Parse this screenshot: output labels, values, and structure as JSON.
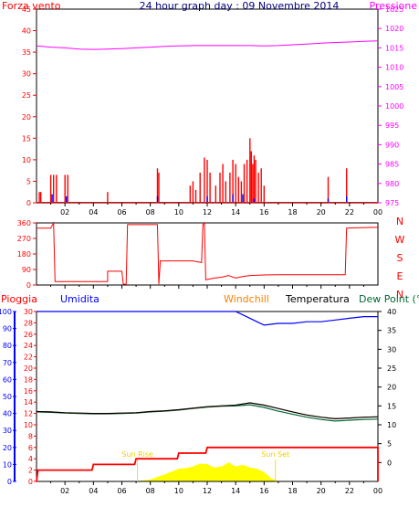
{
  "colors": {
    "background": "#ffffff",
    "frame": "#000000",
    "wind_speed": "#ff0000",
    "wind_gust": "#0000ff",
    "pressure": "#ff00ff",
    "wind_direction": "#ff0000",
    "rain": "#ff0000",
    "humidity": "#0000ff",
    "windchill": "#ff8000",
    "temperature": "#000000",
    "dew_point": "#006633",
    "solar": "#ffff00",
    "sun_label": "#f0d000",
    "title": "#000080"
  },
  "chart_data": [
    {
      "id": "wind-pressure",
      "type": "line",
      "title": "24 hour graph day : 09 Novembre 2014",
      "left_axis_label": "Forza vento",
      "right_axis_label": "Pressione",
      "left_ticks": [
        0,
        5,
        10,
        15,
        20,
        25,
        30,
        35,
        40,
        45
      ],
      "right_ticks": [
        975,
        980,
        985,
        990,
        995,
        1000,
        1005,
        1010,
        1015,
        1020,
        1025
      ],
      "ylim_left": [
        0,
        45
      ],
      "ylim_right": [
        975,
        1025
      ],
      "x_tick_labels": [
        "02",
        "04",
        "06",
        "08",
        "10",
        "12",
        "14",
        "16",
        "18",
        "20",
        "22",
        "00"
      ],
      "x_range_hours": [
        0,
        24
      ],
      "series": [
        {
          "key": "pressure",
          "axis": "right",
          "x": [
            0,
            1,
            2,
            3,
            4,
            5,
            6,
            7,
            8,
            9,
            10,
            11,
            12,
            13,
            14,
            15,
            16,
            17,
            18,
            19,
            20,
            21,
            22,
            23,
            24
          ],
          "values": [
            1015.5,
            1015.2,
            1015,
            1014.7,
            1014.6,
            1014.7,
            1014.8,
            1015,
            1015.2,
            1015.4,
            1015.5,
            1015.6,
            1015.6,
            1015.6,
            1015.6,
            1015.6,
            1015.5,
            1015.6,
            1015.8,
            1016,
            1016.2,
            1016.4,
            1016.5,
            1016.7,
            1016.8
          ]
        },
        {
          "key": "wind_speed",
          "axis": "left",
          "spikes": [
            [
              0.2,
              2.5
            ],
            [
              0.3,
              2.5
            ],
            [
              1,
              6.5
            ],
            [
              1.2,
              6.5
            ],
            [
              1.4,
              6.5
            ],
            [
              2,
              6.5
            ],
            [
              2.2,
              6.5
            ],
            [
              5,
              2.5
            ],
            [
              8.5,
              8
            ],
            [
              8.6,
              7
            ],
            [
              10.8,
              4
            ],
            [
              11,
              5
            ],
            [
              11.2,
              3
            ],
            [
              11.5,
              7
            ],
            [
              11.8,
              10.5
            ],
            [
              12,
              10
            ],
            [
              12.2,
              7
            ],
            [
              12.6,
              4
            ],
            [
              12.9,
              7
            ],
            [
              13.1,
              9
            ],
            [
              13.3,
              5
            ],
            [
              13.6,
              7
            ],
            [
              13.8,
              10
            ],
            [
              14,
              9
            ],
            [
              14.2,
              6
            ],
            [
              14.4,
              5
            ],
            [
              14.6,
              9
            ],
            [
              14.8,
              10
            ],
            [
              15,
              15
            ],
            [
              15.1,
              12
            ],
            [
              15.2,
              9
            ],
            [
              15.3,
              11
            ],
            [
              15.4,
              10
            ],
            [
              15.6,
              7
            ],
            [
              15.8,
              8
            ],
            [
              16,
              4
            ],
            [
              20.5,
              6
            ],
            [
              21.8,
              8
            ]
          ]
        },
        {
          "key": "wind_gust",
          "axis": "left",
          "spikes": [
            [
              1.1,
              2
            ],
            [
              2.1,
              1.5
            ],
            [
              8.5,
              1.5
            ],
            [
              12,
              1.5
            ],
            [
              13.8,
              2
            ],
            [
              14.5,
              2
            ],
            [
              15.3,
              1
            ],
            [
              20.5,
              1
            ],
            [
              21.8,
              1.5
            ]
          ]
        }
      ]
    },
    {
      "id": "wind-direction",
      "type": "line",
      "left_ticks": [
        0,
        90,
        180,
        270,
        360
      ],
      "ylim": [
        0,
        360
      ],
      "right_labels": [
        "N",
        "W",
        "S",
        "E",
        "N"
      ],
      "x_range_hours": [
        0,
        24
      ],
      "series": [
        {
          "key": "wind_direction",
          "points": [
            [
              0,
              330
            ],
            [
              1,
              330
            ],
            [
              1.2,
              360
            ],
            [
              1.3,
              20
            ],
            [
              5,
              20
            ],
            [
              5,
              80
            ],
            [
              6,
              80
            ],
            [
              6.1,
              5
            ],
            [
              6.3,
              5
            ],
            [
              6.4,
              350
            ],
            [
              8.5,
              350
            ],
            [
              8.6,
              5
            ],
            [
              8.7,
              140
            ],
            [
              11,
              140
            ],
            [
              11.6,
              130
            ],
            [
              11.7,
              350
            ],
            [
              11.8,
              370
            ],
            [
              11.9,
              30
            ],
            [
              12.5,
              40
            ],
            [
              13,
              45
            ],
            [
              13.5,
              55
            ],
            [
              14,
              40
            ],
            [
              14.5,
              50
            ],
            [
              15,
              55
            ],
            [
              16,
              58
            ],
            [
              17,
              60
            ],
            [
              20,
              60
            ],
            [
              21.7,
              60
            ],
            [
              21.8,
              330
            ],
            [
              24,
              335
            ]
          ]
        }
      ]
    },
    {
      "id": "rain-humidity-temperature",
      "type": "line",
      "legend": [
        "Pioggia",
        "Umidita",
        "Windchill",
        "Temperatura",
        "Dew Point (°C"
      ],
      "left_ticks_rain": [
        0,
        2,
        4,
        6,
        8,
        10,
        12,
        14,
        16,
        18,
        20,
        22,
        24,
        26,
        28,
        30
      ],
      "ylim_rain": [
        0,
        30
      ],
      "left_ticks_humidity": [
        0,
        10,
        20,
        30,
        40,
        50,
        60,
        70,
        80,
        90,
        100
      ],
      "ylim_humidity": [
        0,
        100
      ],
      "right_ticks_temp": [
        0,
        5,
        10,
        15,
        20,
        25,
        30,
        35,
        40
      ],
      "ylim_temp": [
        -5,
        40
      ],
      "x_tick_labels": [
        "02",
        "04",
        "06",
        "08",
        "10",
        "12",
        "14",
        "16",
        "18",
        "20",
        "22",
        "00"
      ],
      "x_range_hours": [
        0,
        24
      ],
      "annotations": [
        {
          "text": "Sun Rise",
          "hour": 7.1
        },
        {
          "text": "Sun Set",
          "hour": 16.8
        }
      ],
      "series": [
        {
          "key": "humidity",
          "x": [
            0,
            14,
            14.5,
            15,
            15.5,
            16,
            17,
            18,
            19,
            20,
            21,
            22,
            23,
            24
          ],
          "values": [
            100,
            100,
            98,
            96,
            94,
            92,
            93,
            93,
            94,
            94,
            95,
            96,
            97,
            97
          ]
        },
        {
          "key": "temperature",
          "x": [
            0,
            1,
            2,
            3,
            4,
            5,
            6,
            7,
            8,
            9,
            10,
            11,
            12,
            13,
            14,
            15,
            16,
            17,
            18,
            19,
            20,
            21,
            22,
            23,
            24
          ],
          "values": [
            13.5,
            13.4,
            13.2,
            13.1,
            13,
            13,
            13.1,
            13.2,
            13.5,
            13.7,
            14,
            14.4,
            14.8,
            15,
            15.2,
            15.8,
            15.2,
            14.3,
            13.4,
            12.6,
            12,
            11.6,
            11.8,
            12,
            12.1
          ]
        },
        {
          "key": "dew_point",
          "x": [
            0,
            1,
            2,
            3,
            4,
            5,
            6,
            7,
            8,
            9,
            10,
            11,
            12,
            13,
            14,
            15,
            16,
            17,
            18,
            19,
            20,
            21,
            22,
            23,
            24
          ],
          "values": [
            13.4,
            13.3,
            13.1,
            13,
            12.9,
            12.9,
            13,
            13.1,
            13.4,
            13.6,
            13.9,
            14.3,
            14.7,
            14.9,
            15,
            15.3,
            14.6,
            13.6,
            12.8,
            12,
            11.4,
            11,
            11.2,
            11.4,
            11.5
          ]
        },
        {
          "key": "windchill",
          "x": [
            0,
            1,
            2,
            3,
            4,
            5,
            6,
            7,
            8,
            9,
            10,
            11,
            12,
            13,
            14,
            15,
            16,
            17,
            18,
            19,
            20,
            21,
            22,
            23,
            24
          ],
          "values": [
            13.5,
            13.4,
            13.2,
            13.1,
            13,
            13,
            13.1,
            13.2,
            13.5,
            13.7,
            14,
            14.4,
            14.8,
            15,
            15.2,
            15.8,
            15.2,
            14.3,
            13.4,
            12.6,
            12,
            11.6,
            11.8,
            12,
            12.1
          ]
        },
        {
          "key": "rain",
          "x": [
            0,
            0.1,
            0.2,
            3.9,
            4,
            6.9,
            7,
            9.9,
            10,
            11.9,
            12,
            24,
            24
          ],
          "values": [
            0,
            2,
            2,
            2,
            3,
            3,
            4,
            4,
            5,
            5,
            6,
            6,
            0
          ]
        },
        {
          "key": "solar",
          "x": [
            7,
            8,
            9,
            10,
            10.5,
            11,
            11.5,
            12,
            12.5,
            13,
            13.5,
            14,
            14.5,
            15,
            15.5,
            16,
            16.5,
            17
          ],
          "values": [
            0,
            0.3,
            1.2,
            2.2,
            2.3,
            2.6,
            3.1,
            3,
            2.4,
            2.6,
            3.3,
            2.6,
            2.9,
            2.4,
            2.2,
            1.6,
            0.5,
            0
          ]
        }
      ]
    }
  ]
}
